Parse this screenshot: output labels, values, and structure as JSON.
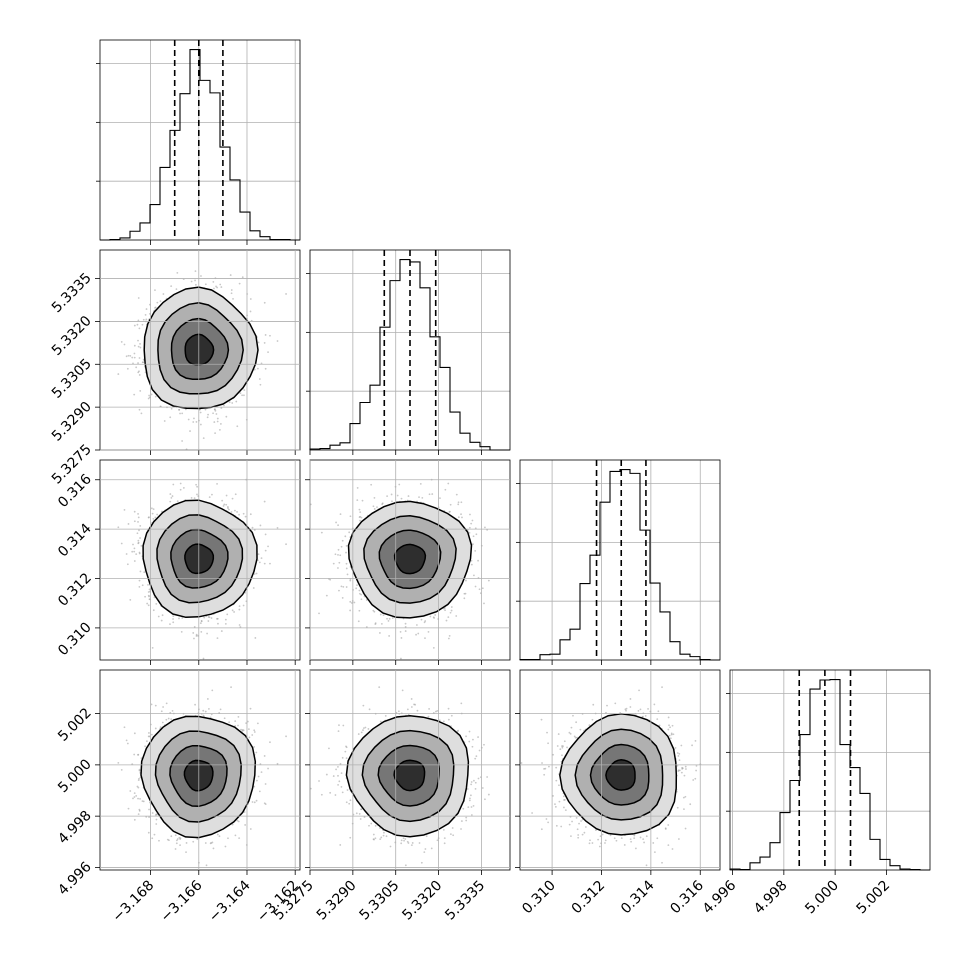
{
  "chart_data": {
    "type": "corner",
    "parameters": [
      {
        "mean": -3.166,
        "sd": 0.001,
        "range": [
          -3.1701,
          -3.1618
        ],
        "ticks": [
          -3.168,
          -3.166,
          -3.164,
          -3.162
        ],
        "tick_labels": [
          "−3.168",
          "−3.166",
          "−3.164",
          "−3.162"
        ],
        "quantiles": [
          -3.167,
          -3.166,
          -3.165
        ]
      },
      {
        "mean": 5.331,
        "sd": 0.0009,
        "range": [
          5.3275,
          5.3345
        ],
        "ticks": [
          5.3275,
          5.329,
          5.3305,
          5.332,
          5.3335
        ],
        "tick_labels": [
          "5.3275",
          "5.3290",
          "5.3305",
          "5.3320",
          "5.3335"
        ],
        "quantiles": [
          5.3301,
          5.331,
          5.3319
        ]
      },
      {
        "mean": 0.3128,
        "sd": 0.001,
        "range": [
          0.3087,
          0.3168
        ],
        "ticks": [
          0.31,
          0.312,
          0.314,
          0.316
        ],
        "tick_labels": [
          "0.310",
          "0.312",
          "0.314",
          "0.316"
        ],
        "quantiles": [
          0.3118,
          0.3128,
          0.3138
        ]
      },
      {
        "mean": 4.9996,
        "sd": 0.001,
        "range": [
          4.9959,
          5.0037
        ],
        "ticks": [
          4.996,
          4.998,
          5.0,
          5.002
        ],
        "tick_labels": [
          "4.996",
          "4.998",
          "5.000",
          "5.002"
        ],
        "quantiles": [
          4.9986,
          4.9996,
          5.0006
        ]
      }
    ],
    "histogram_bins": 20,
    "contour_levels_sigma": [
      0.5,
      1.0,
      1.5,
      2.0
    ],
    "grid": true,
    "histogram_color": "#000000",
    "scatter_color": "#9a9a9a",
    "density_colors": [
      "#d8d8d8",
      "#a8a8a8",
      "#6c6c6c",
      "#222222"
    ]
  }
}
